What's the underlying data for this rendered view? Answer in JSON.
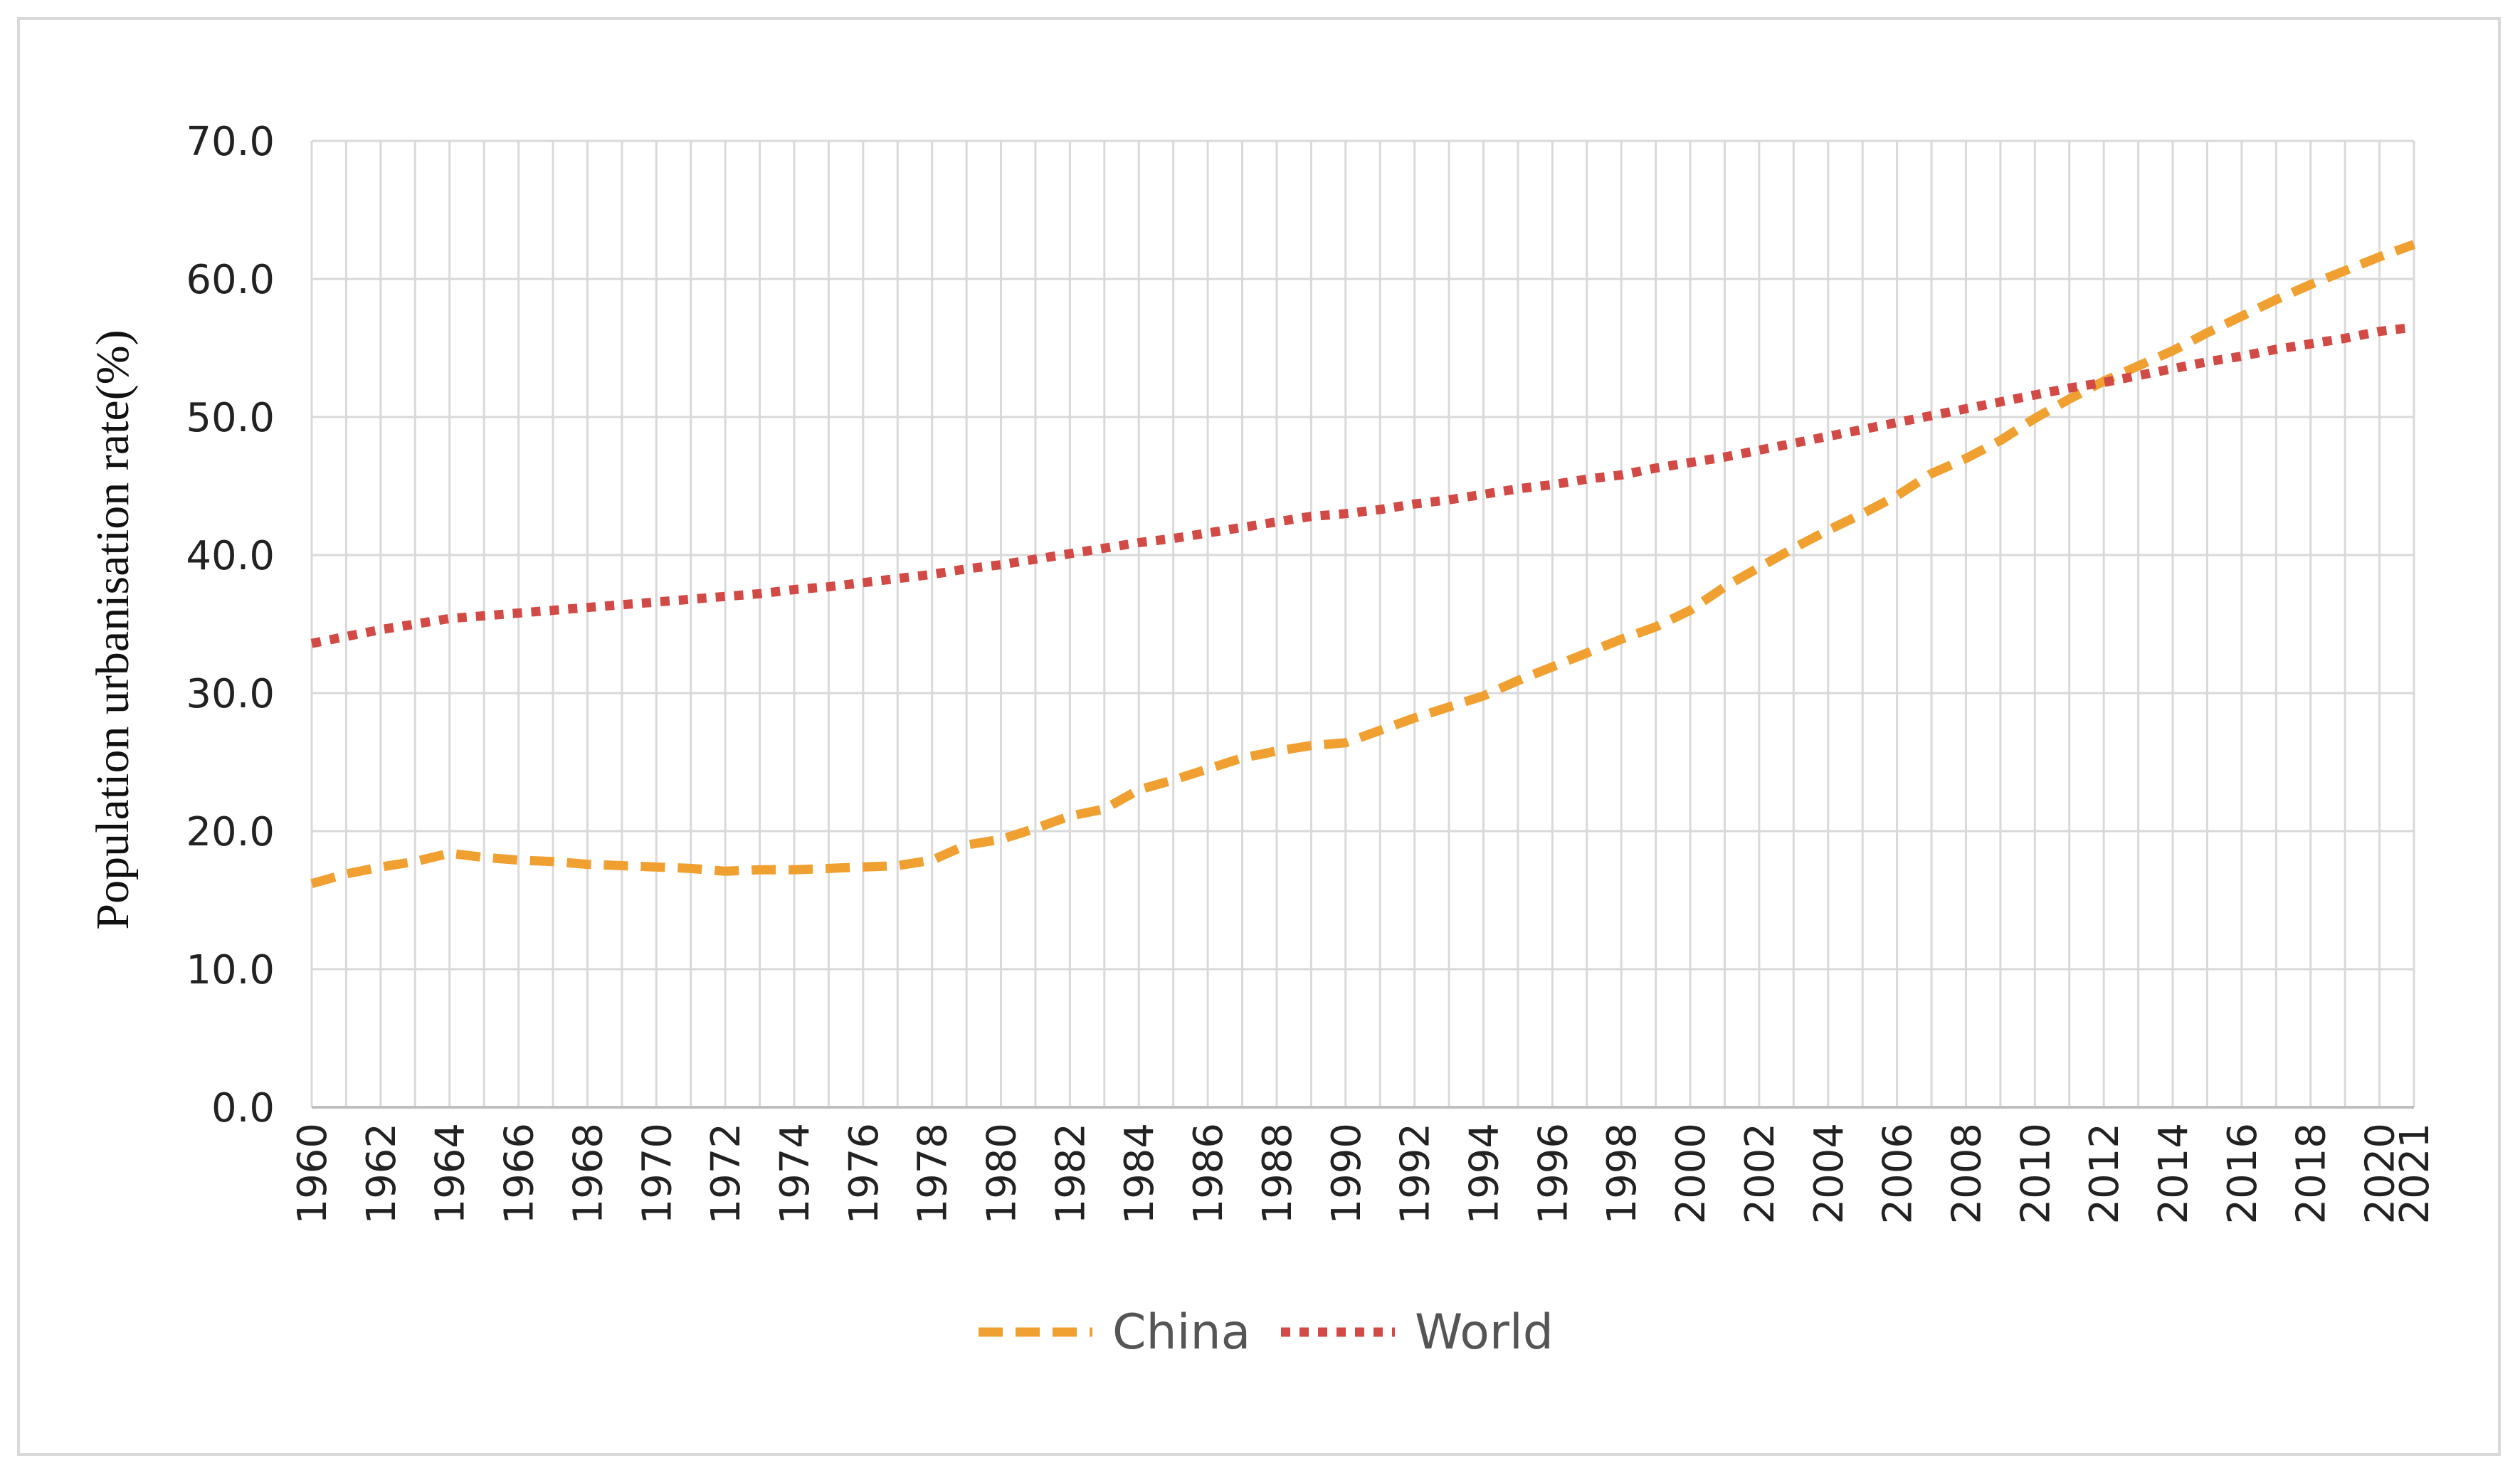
{
  "chart_data": {
    "type": "line",
    "title": "",
    "xlabel": "",
    "ylabel": "Population urbanisation rate(%)",
    "ylim": [
      0,
      70
    ],
    "ytick_step": 10,
    "grid": true,
    "legend_position": "bottom-center",
    "x_start": 1960,
    "x_end": 2021,
    "x_tick_labels": [
      "1960",
      "1962",
      "1964",
      "1966",
      "1968",
      "1970",
      "1972",
      "1974",
      "1976",
      "1978",
      "1980",
      "1982",
      "1984",
      "1986",
      "1988",
      "1990",
      "1992",
      "1994",
      "1996",
      "1998",
      "2000",
      "2002",
      "2004",
      "2006",
      "2008",
      "2010",
      "2012",
      "2014",
      "2016",
      "2018",
      "2020",
      "2021"
    ],
    "y_tick_labels": [
      "0.0",
      "10.0",
      "20.0",
      "30.0",
      "40.0",
      "50.0",
      "60.0",
      "70.0"
    ],
    "series": [
      {
        "name": "China",
        "color": "#F0A030",
        "dash": "dashed",
        "points": [
          [
            1960,
            16.2
          ],
          [
            1961,
            16.9
          ],
          [
            1962,
            17.4
          ],
          [
            1963,
            17.8
          ],
          [
            1964,
            18.4
          ],
          [
            1965,
            18.1
          ],
          [
            1966,
            17.9
          ],
          [
            1967,
            17.8
          ],
          [
            1968,
            17.6
          ],
          [
            1969,
            17.5
          ],
          [
            1970,
            17.4
          ],
          [
            1971,
            17.3
          ],
          [
            1972,
            17.1
          ],
          [
            1973,
            17.2
          ],
          [
            1974,
            17.2
          ],
          [
            1975,
            17.3
          ],
          [
            1976,
            17.4
          ],
          [
            1977,
            17.5
          ],
          [
            1978,
            17.9
          ],
          [
            1979,
            19.0
          ],
          [
            1980,
            19.4
          ],
          [
            1981,
            20.2
          ],
          [
            1982,
            21.1
          ],
          [
            1983,
            21.6
          ],
          [
            1984,
            23.0
          ],
          [
            1985,
            23.7
          ],
          [
            1986,
            24.5
          ],
          [
            1987,
            25.3
          ],
          [
            1988,
            25.8
          ],
          [
            1989,
            26.2
          ],
          [
            1990,
            26.4
          ],
          [
            1991,
            27.3
          ],
          [
            1992,
            28.2
          ],
          [
            1993,
            29.0
          ],
          [
            1994,
            29.8
          ],
          [
            1995,
            30.9
          ],
          [
            1996,
            31.9
          ],
          [
            1997,
            32.9
          ],
          [
            1998,
            33.9
          ],
          [
            1999,
            34.8
          ],
          [
            2000,
            36.0
          ],
          [
            2001,
            37.7
          ],
          [
            2002,
            39.1
          ],
          [
            2003,
            40.5
          ],
          [
            2004,
            41.8
          ],
          [
            2005,
            43.0
          ],
          [
            2006,
            44.3
          ],
          [
            2007,
            45.9
          ],
          [
            2008,
            47.0
          ],
          [
            2009,
            48.3
          ],
          [
            2010,
            49.9
          ],
          [
            2011,
            51.3
          ],
          [
            2012,
            52.6
          ],
          [
            2013,
            53.7
          ],
          [
            2014,
            54.8
          ],
          [
            2015,
            56.1
          ],
          [
            2016,
            57.3
          ],
          [
            2017,
            58.5
          ],
          [
            2018,
            59.6
          ],
          [
            2019,
            60.6
          ],
          [
            2020,
            61.6
          ],
          [
            2021,
            62.5
          ]
        ]
      },
      {
        "name": "World",
        "color": "#D24A45",
        "dash": "dotted",
        "points": [
          [
            1960,
            33.6
          ],
          [
            1961,
            34.1
          ],
          [
            1962,
            34.6
          ],
          [
            1963,
            35.0
          ],
          [
            1964,
            35.4
          ],
          [
            1965,
            35.6
          ],
          [
            1966,
            35.8
          ],
          [
            1967,
            36.0
          ],
          [
            1968,
            36.2
          ],
          [
            1969,
            36.4
          ],
          [
            1970,
            36.6
          ],
          [
            1971,
            36.8
          ],
          [
            1972,
            37.0
          ],
          [
            1973,
            37.2
          ],
          [
            1974,
            37.5
          ],
          [
            1975,
            37.7
          ],
          [
            1976,
            38.0
          ],
          [
            1977,
            38.3
          ],
          [
            1978,
            38.6
          ],
          [
            1979,
            39.0
          ],
          [
            1980,
            39.3
          ],
          [
            1981,
            39.7
          ],
          [
            1982,
            40.1
          ],
          [
            1983,
            40.5
          ],
          [
            1984,
            40.9
          ],
          [
            1985,
            41.2
          ],
          [
            1986,
            41.6
          ],
          [
            1987,
            42.0
          ],
          [
            1988,
            42.4
          ],
          [
            1989,
            42.8
          ],
          [
            1990,
            43.0
          ],
          [
            1991,
            43.3
          ],
          [
            1992,
            43.7
          ],
          [
            1993,
            44.0
          ],
          [
            1994,
            44.4
          ],
          [
            1995,
            44.8
          ],
          [
            1996,
            45.1
          ],
          [
            1997,
            45.5
          ],
          [
            1998,
            45.8
          ],
          [
            1999,
            46.3
          ],
          [
            2000,
            46.7
          ],
          [
            2001,
            47.1
          ],
          [
            2002,
            47.6
          ],
          [
            2003,
            48.1
          ],
          [
            2004,
            48.6
          ],
          [
            2005,
            49.1
          ],
          [
            2006,
            49.6
          ],
          [
            2007,
            50.1
          ],
          [
            2008,
            50.6
          ],
          [
            2009,
            51.1
          ],
          [
            2010,
            51.6
          ],
          [
            2011,
            52.1
          ],
          [
            2012,
            52.5
          ],
          [
            2013,
            53.0
          ],
          [
            2014,
            53.5
          ],
          [
            2015,
            54.0
          ],
          [
            2016,
            54.4
          ],
          [
            2017,
            54.9
          ],
          [
            2018,
            55.3
          ],
          [
            2019,
            55.7
          ],
          [
            2020,
            56.2
          ],
          [
            2021,
            56.5
          ]
        ]
      }
    ]
  }
}
